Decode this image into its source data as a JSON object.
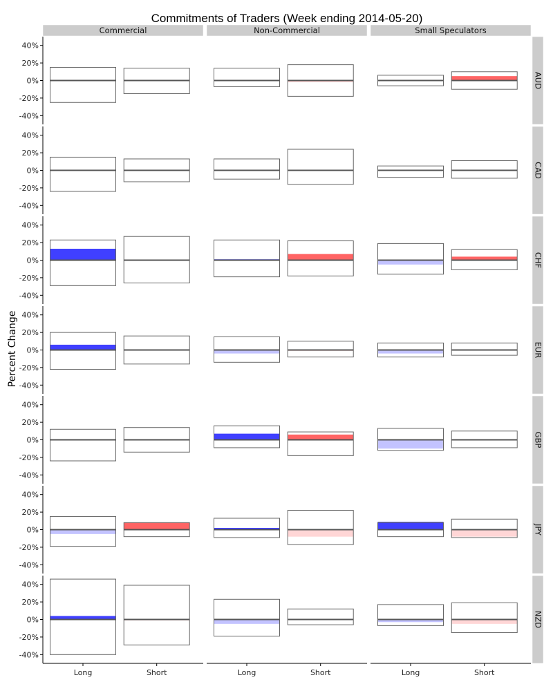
{
  "chart_data": {
    "type": "bar",
    "title": "Commitments of Traders (Week ending 2014-05-20)",
    "ylabel": "Percent Change",
    "xlabel": "",
    "columns": [
      "Commercial",
      "Non-Commercial",
      "Small Speculators"
    ],
    "rows": [
      "AUD",
      "CAD",
      "CHF",
      "EUR",
      "GBP",
      "JPY",
      "NZD"
    ],
    "categories": [
      "Long",
      "Short"
    ],
    "y_ticks": [
      -40,
      -20,
      0,
      20,
      40
    ],
    "y_tick_labels": [
      "-40%",
      "-20%",
      "0%",
      "20%",
      "40%"
    ],
    "ylim": [
      -50,
      50
    ],
    "colors": {
      "long_positive": "#0000ff",
      "long_negative": "#c3c3ff",
      "short_positive": "#ff3030",
      "short_negative": "#ffd6d6",
      "strip": "#cccccc",
      "box": "#666666"
    },
    "panels": [
      {
        "row": "AUD",
        "col": "Commercial",
        "bars": [
          {
            "category": "Long",
            "min": -25,
            "max": 15,
            "change": 0
          },
          {
            "category": "Short",
            "min": -15,
            "max": 14,
            "change": 0
          }
        ]
      },
      {
        "row": "AUD",
        "col": "Non-Commercial",
        "bars": [
          {
            "category": "Long",
            "min": -7,
            "max": 14,
            "change": 0
          },
          {
            "category": "Short",
            "min": -18,
            "max": 18,
            "change": -2
          }
        ]
      },
      {
        "row": "AUD",
        "col": "Small Speculators",
        "bars": [
          {
            "category": "Long",
            "min": -6,
            "max": 6,
            "change": 0
          },
          {
            "category": "Short",
            "min": -10,
            "max": 10,
            "change": 5
          }
        ]
      },
      {
        "row": "CAD",
        "col": "Commercial",
        "bars": [
          {
            "category": "Long",
            "min": -24,
            "max": 15,
            "change": 0
          },
          {
            "category": "Short",
            "min": -13,
            "max": 13,
            "change": 0
          }
        ]
      },
      {
        "row": "CAD",
        "col": "Non-Commercial",
        "bars": [
          {
            "category": "Long",
            "min": -10,
            "max": 13,
            "change": 0
          },
          {
            "category": "Short",
            "min": -16,
            "max": 24,
            "change": 0
          }
        ]
      },
      {
        "row": "CAD",
        "col": "Small Speculators",
        "bars": [
          {
            "category": "Long",
            "min": -8,
            "max": 5,
            "change": 0
          },
          {
            "category": "Short",
            "min": -9,
            "max": 11,
            "change": 0
          }
        ]
      },
      {
        "row": "CHF",
        "col": "Commercial",
        "bars": [
          {
            "category": "Long",
            "min": -29,
            "max": 23,
            "change": 13
          },
          {
            "category": "Short",
            "min": -26,
            "max": 27,
            "change": 0
          }
        ]
      },
      {
        "row": "CHF",
        "col": "Non-Commercial",
        "bars": [
          {
            "category": "Long",
            "min": -19,
            "max": 23,
            "change": 1
          },
          {
            "category": "Short",
            "min": -18,
            "max": 22,
            "change": 7
          }
        ]
      },
      {
        "row": "CHF",
        "col": "Small Speculators",
        "bars": [
          {
            "category": "Long",
            "min": -16,
            "max": 19,
            "change": -5
          },
          {
            "category": "Short",
            "min": -11,
            "max": 12,
            "change": 4
          }
        ]
      },
      {
        "row": "EUR",
        "col": "Commercial",
        "bars": [
          {
            "category": "Long",
            "min": -22,
            "max": 20,
            "change": 6
          },
          {
            "category": "Short",
            "min": -16,
            "max": 16,
            "change": 0
          }
        ]
      },
      {
        "row": "EUR",
        "col": "Non-Commercial",
        "bars": [
          {
            "category": "Long",
            "min": -14,
            "max": 15,
            "change": -4
          },
          {
            "category": "Short",
            "min": -8,
            "max": 10,
            "change": -1
          }
        ]
      },
      {
        "row": "EUR",
        "col": "Small Speculators",
        "bars": [
          {
            "category": "Long",
            "min": -8,
            "max": 8,
            "change": -4
          },
          {
            "category": "Short",
            "min": -6,
            "max": 8,
            "change": 0
          }
        ]
      },
      {
        "row": "GBP",
        "col": "Commercial",
        "bars": [
          {
            "category": "Long",
            "min": -24,
            "max": 12,
            "change": 0
          },
          {
            "category": "Short",
            "min": -14,
            "max": 14,
            "change": 0
          }
        ]
      },
      {
        "row": "GBP",
        "col": "Non-Commercial",
        "bars": [
          {
            "category": "Long",
            "min": -9,
            "max": 16,
            "change": 7
          },
          {
            "category": "Short",
            "min": -18,
            "max": 9,
            "change": 6
          }
        ]
      },
      {
        "row": "GBP",
        "col": "Small Speculators",
        "bars": [
          {
            "category": "Long",
            "min": -12,
            "max": 13,
            "change": -10
          },
          {
            "category": "Short",
            "min": -9,
            "max": 10,
            "change": 0
          }
        ]
      },
      {
        "row": "JPY",
        "col": "Commercial",
        "bars": [
          {
            "category": "Long",
            "min": -19,
            "max": 15,
            "change": -5
          },
          {
            "category": "Short",
            "min": -8,
            "max": 8,
            "change": 8
          }
        ]
      },
      {
        "row": "JPY",
        "col": "Non-Commercial",
        "bars": [
          {
            "category": "Long",
            "min": -9,
            "max": 13,
            "change": 2
          },
          {
            "category": "Short",
            "min": -17,
            "max": 22,
            "change": -8
          }
        ]
      },
      {
        "row": "JPY",
        "col": "Small Speculators",
        "bars": [
          {
            "category": "Long",
            "min": -8,
            "max": 8,
            "change": 9
          },
          {
            "category": "Short",
            "min": -9,
            "max": 12,
            "change": -8
          }
        ]
      },
      {
        "row": "NZD",
        "col": "Commercial",
        "bars": [
          {
            "category": "Long",
            "min": -40,
            "max": 46,
            "change": 4
          },
          {
            "category": "Short",
            "min": -29,
            "max": 39,
            "change": -1
          }
        ]
      },
      {
        "row": "NZD",
        "col": "Non-Commercial",
        "bars": [
          {
            "category": "Long",
            "min": -19,
            "max": 23,
            "change": -5
          },
          {
            "category": "Short",
            "min": -6,
            "max": 12,
            "change": 0
          }
        ]
      },
      {
        "row": "NZD",
        "col": "Small Speculators",
        "bars": [
          {
            "category": "Long",
            "min": -7,
            "max": 17,
            "change": -3
          },
          {
            "category": "Short",
            "min": -15,
            "max": 19,
            "change": -5
          }
        ]
      }
    ]
  }
}
